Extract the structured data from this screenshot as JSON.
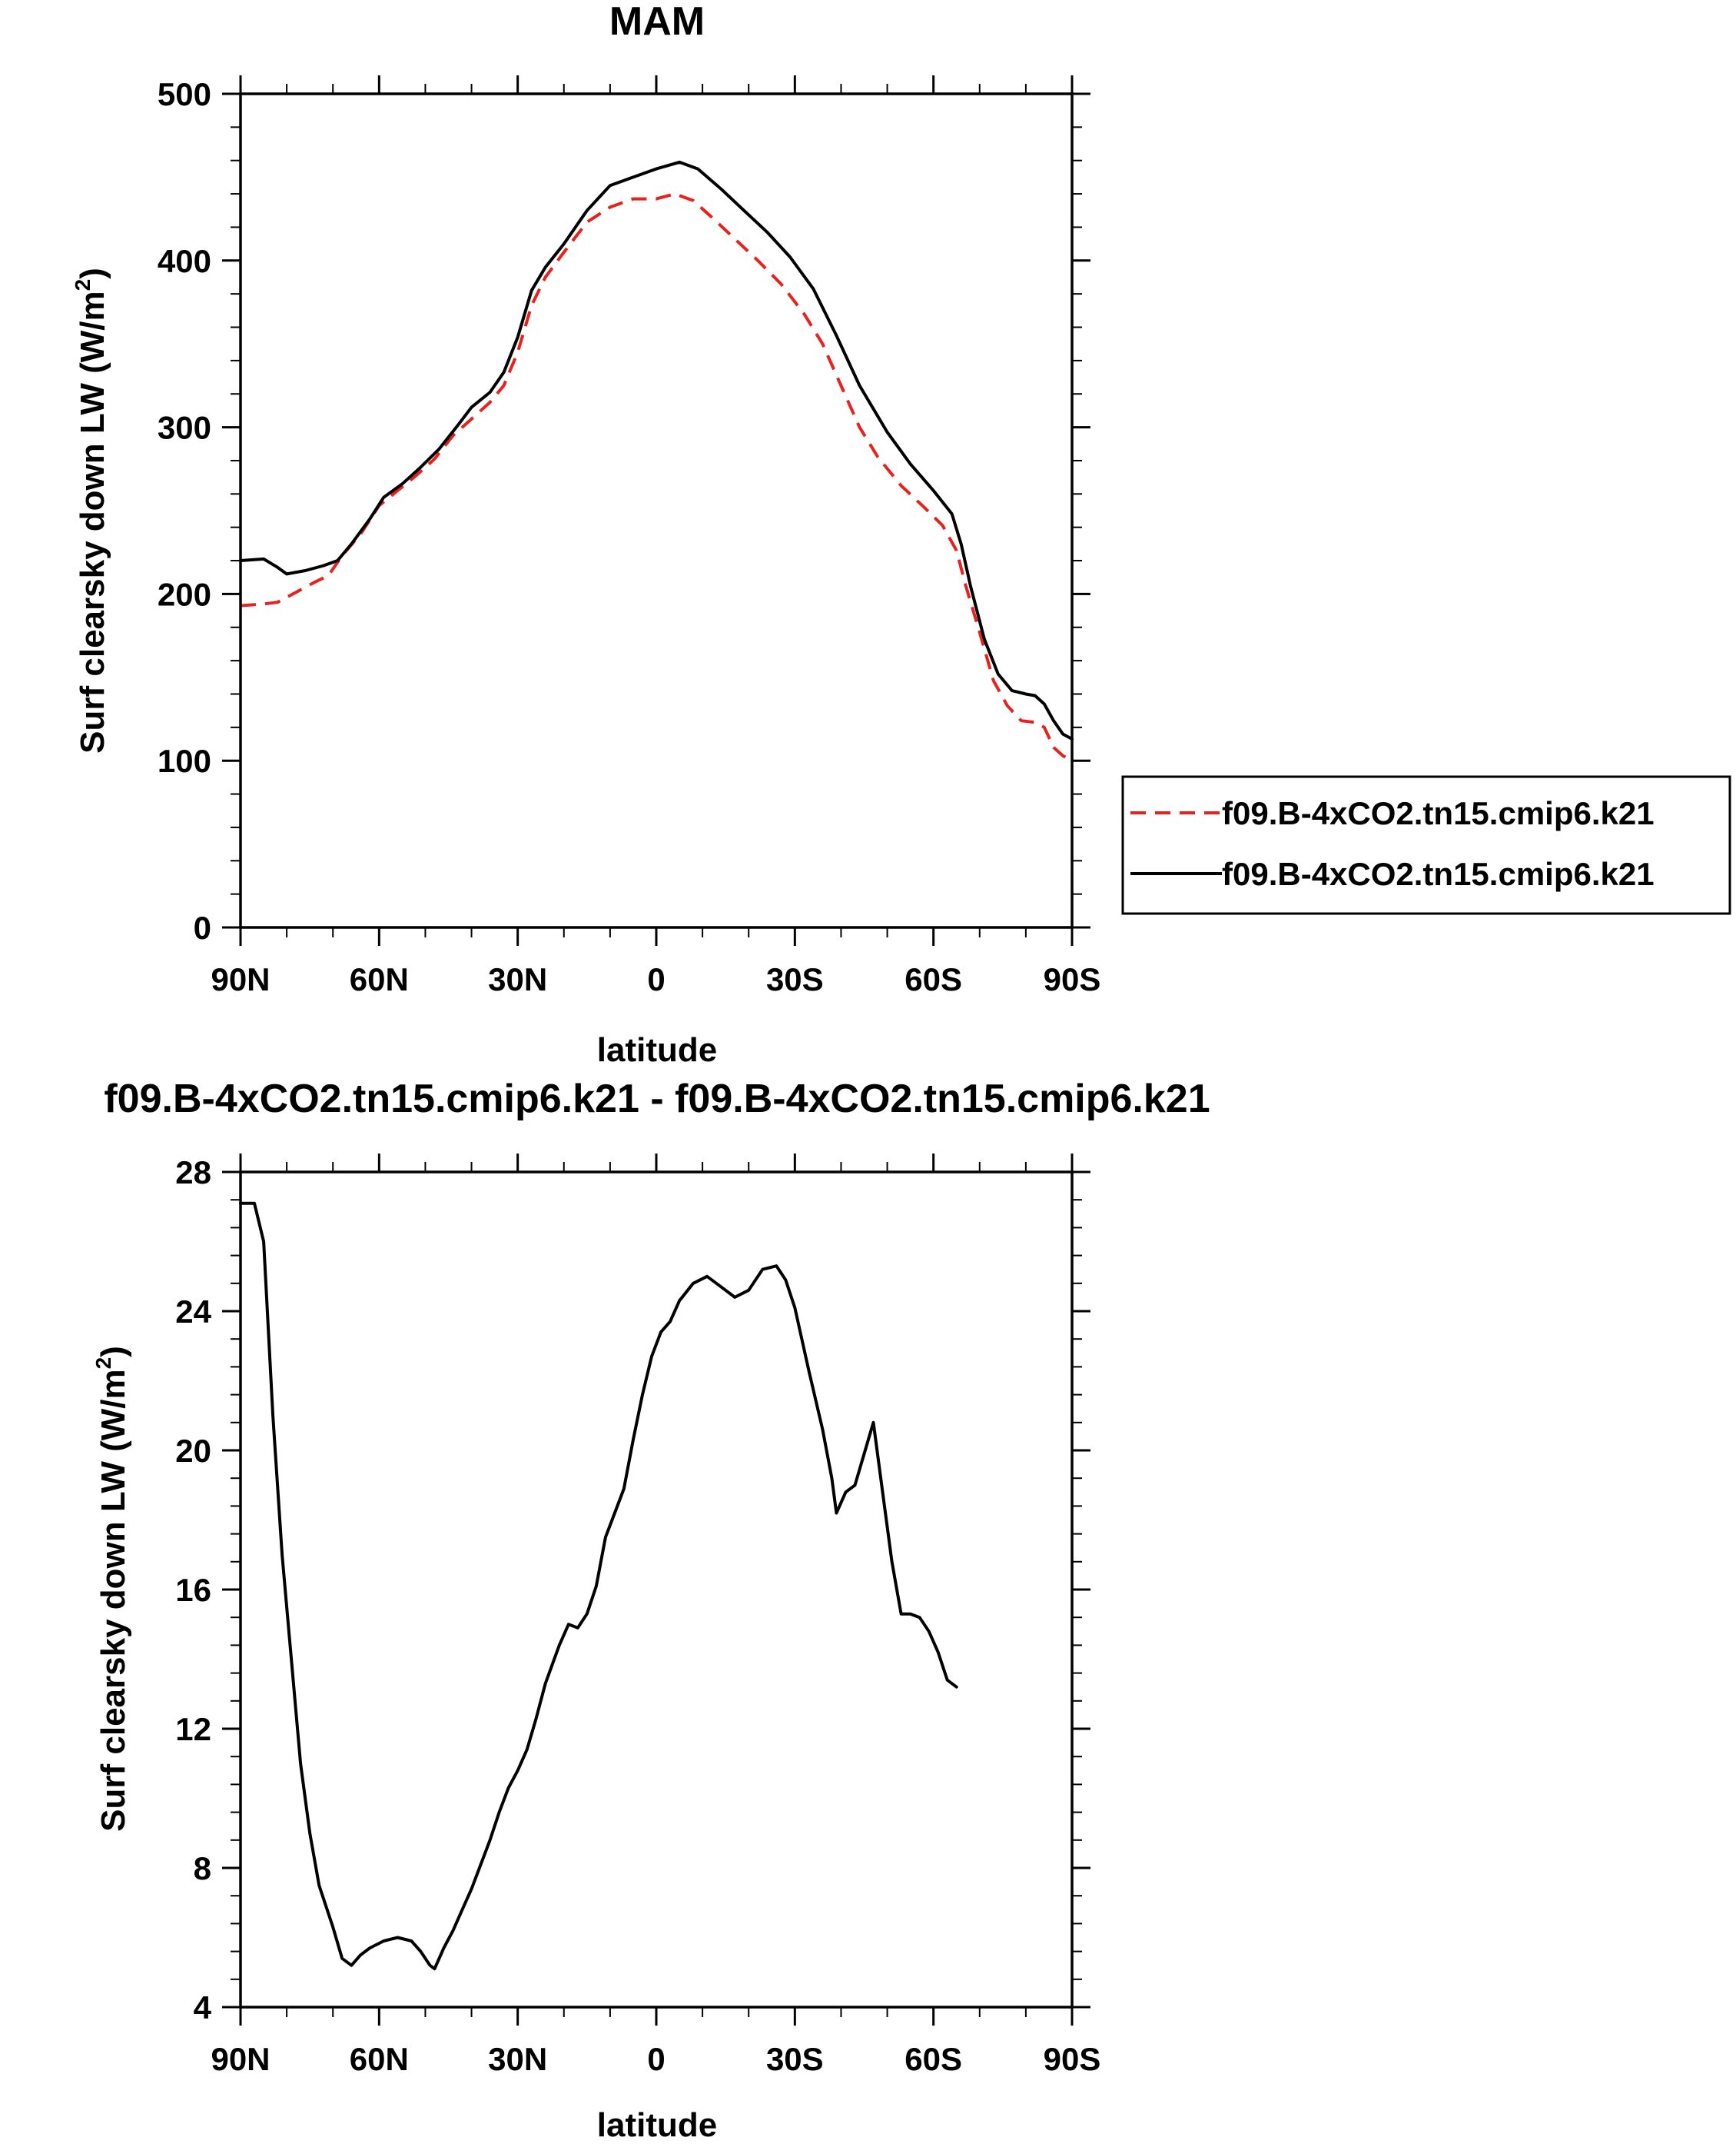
{
  "chart_data": [
    {
      "type": "line",
      "title": "MAM",
      "xlabel": "latitude",
      "ylabel_main": "Surf clearsky down LW (W/m",
      "ylabel_sup": "2",
      "ylabel_close": ")",
      "xlim": [
        90,
        -90
      ],
      "ylim": [
        0,
        500
      ],
      "x_ticks": [
        90,
        60,
        30,
        0,
        -30,
        -60,
        -90
      ],
      "x_tick_labels": [
        "90N",
        "60N",
        "30N",
        "0",
        "30S",
        "60S",
        "90S"
      ],
      "y_ticks": [
        0,
        100,
        200,
        300,
        400,
        500
      ],
      "y_tick_labels": [
        "0",
        "100",
        "200",
        "300",
        "400",
        "500"
      ],
      "grid": false,
      "legend_position": "right",
      "series": [
        {
          "name": "f09.B-4xCO2.tn15.cmip6.k21",
          "color": "#e8211d",
          "dash": "dashed",
          "points": [
            [
              90,
              193
            ],
            [
              85,
              194
            ],
            [
              82,
              195
            ],
            [
              78,
              201
            ],
            [
              74,
              207
            ],
            [
              71,
              211
            ],
            [
              68,
              223
            ],
            [
              64,
              236
            ],
            [
              60,
              253
            ],
            [
              56,
              262
            ],
            [
              52,
              271
            ],
            [
              48,
              281
            ],
            [
              44,
              295
            ],
            [
              40,
              305
            ],
            [
              36,
              315
            ],
            [
              33,
              325
            ],
            [
              30,
              345
            ],
            [
              27,
              373
            ],
            [
              24,
              390
            ],
            [
              20,
              405
            ],
            [
              15,
              423
            ],
            [
              10,
              432
            ],
            [
              5,
              437
            ],
            [
              0,
              437
            ],
            [
              -4,
              440
            ],
            [
              -8,
              436
            ],
            [
              -12,
              426
            ],
            [
              -17,
              413
            ],
            [
              -22,
              400
            ],
            [
              -27,
              386
            ],
            [
              -32,
              368
            ],
            [
              -36,
              350
            ],
            [
              -40,
              325
            ],
            [
              -44,
              300
            ],
            [
              -48,
              282
            ],
            [
              -53,
              265
            ],
            [
              -58,
              252
            ],
            [
              -62,
              241
            ],
            [
              -65,
              226
            ],
            [
              -67,
              205
            ],
            [
              -70,
              177
            ],
            [
              -73,
              148
            ],
            [
              -76,
              133
            ],
            [
              -79,
              124
            ],
            [
              -82,
              123
            ],
            [
              -84,
              120
            ],
            [
              -86,
              108
            ],
            [
              -88,
              103
            ],
            [
              -90,
              100
            ]
          ]
        },
        {
          "name": "f09.B-4xCO2.tn15.cmip6.k21",
          "color": "#000000",
          "dash": "solid",
          "points": [
            [
              90,
              220
            ],
            [
              85,
              221
            ],
            [
              82,
              216
            ],
            [
              80,
              212
            ],
            [
              76,
              214
            ],
            [
              72,
              217
            ],
            [
              69,
              220
            ],
            [
              66,
              230
            ],
            [
              62,
              245
            ],
            [
              59,
              258
            ],
            [
              55,
              266
            ],
            [
              51,
              276
            ],
            [
              47,
              287
            ],
            [
              43,
              301
            ],
            [
              40,
              312
            ],
            [
              36,
              321
            ],
            [
              33,
              333
            ],
            [
              30,
              354
            ],
            [
              27,
              382
            ],
            [
              24,
              396
            ],
            [
              20,
              410
            ],
            [
              15,
              430
            ],
            [
              10,
              445
            ],
            [
              5,
              450
            ],
            [
              0,
              455
            ],
            [
              -5,
              459
            ],
            [
              -9,
              455
            ],
            [
              -14,
              443
            ],
            [
              -19,
              430
            ],
            [
              -24,
              417
            ],
            [
              -29,
              402
            ],
            [
              -34,
              383
            ],
            [
              -39,
              355
            ],
            [
              -44,
              325
            ],
            [
              -50,
              297
            ],
            [
              -55,
              278
            ],
            [
              -60,
              262
            ],
            [
              -64,
              248
            ],
            [
              -66,
              230
            ],
            [
              -68,
              205
            ],
            [
              -71,
              173
            ],
            [
              -74,
              152
            ],
            [
              -77,
              142
            ],
            [
              -80,
              140
            ],
            [
              -82,
              139
            ],
            [
              -84,
              134
            ],
            [
              -86,
              124
            ],
            [
              -88,
              116
            ],
            [
              -90,
              113
            ]
          ]
        }
      ]
    },
    {
      "type": "line",
      "title": "f09.B-4xCO2.tn15.cmip6.k21 - f09.B-4xCO2.tn15.cmip6.k21",
      "xlabel": "latitude",
      "ylabel_main": "Surf clearsky down LW (W/m",
      "ylabel_sup": "2",
      "ylabel_close": ")",
      "xlim": [
        90,
        -90
      ],
      "ylim": [
        4,
        28
      ],
      "x_ticks": [
        90,
        60,
        30,
        0,
        -30,
        -60,
        -90
      ],
      "x_tick_labels": [
        "90N",
        "60N",
        "30N",
        "0",
        "30S",
        "60S",
        "90S"
      ],
      "y_ticks": [
        4,
        8,
        12,
        16,
        20,
        24,
        28
      ],
      "y_tick_labels": [
        "4",
        "8",
        "12",
        "16",
        "20",
        "24",
        "28"
      ],
      "grid": false,
      "series": [
        {
          "color": "#000000",
          "dash": "solid",
          "points": [
            [
              90,
              27.1
            ],
            [
              87,
              27.1
            ],
            [
              85,
              26
            ],
            [
              83,
              21
            ],
            [
              81,
              17
            ],
            [
              79,
              14
            ],
            [
              77,
              11
            ],
            [
              75,
              9
            ],
            [
              73,
              7.5
            ],
            [
              70,
              6.3
            ],
            [
              68,
              5.4
            ],
            [
              66,
              5.2
            ],
            [
              64,
              5.5
            ],
            [
              62,
              5.7
            ],
            [
              59,
              5.9
            ],
            [
              56,
              6
            ],
            [
              53,
              5.9
            ],
            [
              51,
              5.6
            ],
            [
              49,
              5.2
            ],
            [
              48,
              5.1
            ],
            [
              46,
              5.7
            ],
            [
              44,
              6.2
            ],
            [
              42,
              6.8
            ],
            [
              40,
              7.4
            ],
            [
              38,
              8.1
            ],
            [
              36,
              8.8
            ],
            [
              34,
              9.6
            ],
            [
              32,
              10.3
            ],
            [
              30,
              10.8
            ],
            [
              28,
              11.4
            ],
            [
              26,
              12.3
            ],
            [
              24,
              13.3
            ],
            [
              21,
              14.4
            ],
            [
              19,
              15
            ],
            [
              17,
              14.9
            ],
            [
              15,
              15.3
            ],
            [
              13,
              16.1
            ],
            [
              11,
              17.5
            ],
            [
              9,
              18.2
            ],
            [
              7,
              18.9
            ],
            [
              5,
              20.3
            ],
            [
              3,
              21.6
            ],
            [
              1,
              22.7
            ],
            [
              -1,
              23.4
            ],
            [
              -3,
              23.7
            ],
            [
              -5,
              24.3
            ],
            [
              -8,
              24.8
            ],
            [
              -11,
              25
            ],
            [
              -14,
              24.7
            ],
            [
              -17,
              24.4
            ],
            [
              -20,
              24.6
            ],
            [
              -23,
              25.2
            ],
            [
              -26,
              25.3
            ],
            [
              -28,
              24.9
            ],
            [
              -30,
              24.1
            ],
            [
              -33,
              22.3
            ],
            [
              -36,
              20.6
            ],
            [
              -38,
              19.2
            ],
            [
              -39,
              18.2
            ],
            [
              -41,
              18.8
            ],
            [
              -43,
              19
            ],
            [
              -45,
              19.9
            ],
            [
              -47,
              20.8
            ],
            [
              -49,
              18.8
            ],
            [
              -51,
              16.8
            ],
            [
              -53,
              15.3
            ],
            [
              -55,
              15.3
            ],
            [
              -57,
              15.2
            ],
            [
              -59,
              14.8
            ],
            [
              -61,
              14.2
            ],
            [
              -63,
              13.4
            ],
            [
              -65,
              13.2
            ]
          ]
        }
      ]
    }
  ]
}
